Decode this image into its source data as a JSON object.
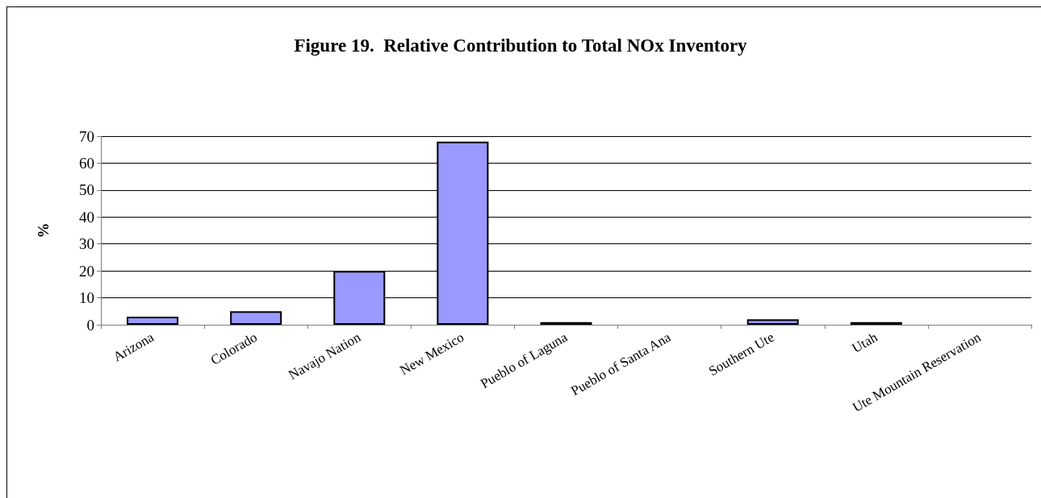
{
  "chart_data": {
    "type": "bar",
    "title": "Figure 19.  Relative Contribution to Total NOx Inventory",
    "ylabel": "%",
    "categories": [
      "Arizona",
      "Colorado",
      "Navajo Nation",
      "New Mexico",
      "Pueblo of Laguna",
      "Pueblo of Santa Ana",
      "Southern Ute",
      "Utah",
      "Ute Mountain Reservation"
    ],
    "values": [
      3,
      5,
      20,
      68,
      1,
      0,
      2,
      1,
      0
    ],
    "color": "#9999ff",
    "ylim": [
      0,
      70
    ],
    "yticks": [
      0,
      10,
      20,
      30,
      40,
      50,
      60,
      70
    ],
    "grid": "y"
  }
}
